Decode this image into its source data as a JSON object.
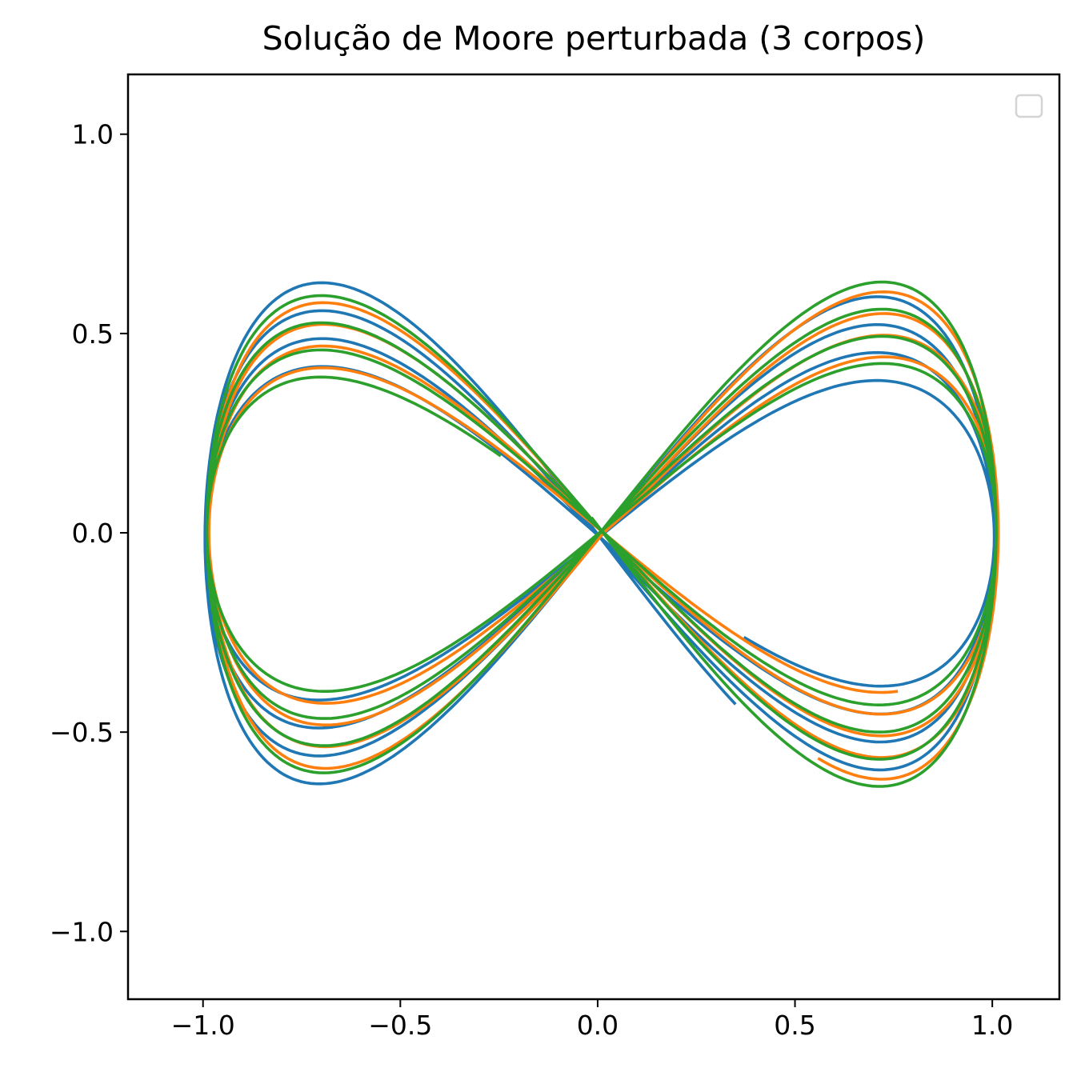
{
  "chart_data": {
    "type": "line",
    "title": "Solução de Moore perturbada (3 corpos)",
    "xlabel": "",
    "ylabel": "",
    "xlim": [
      -1.19,
      1.17
    ],
    "ylim": [
      -1.17,
      1.15
    ],
    "aspect": "equal",
    "grid": false,
    "legend": {
      "placement": "top-right",
      "entries": []
    },
    "x_ticks": [
      {
        "value": -1.0,
        "label": "−1.0"
      },
      {
        "value": -0.5,
        "label": "−0.5"
      },
      {
        "value": 0.0,
        "label": "0.0"
      },
      {
        "value": 0.5,
        "label": "0.5"
      },
      {
        "value": 1.0,
        "label": "1.0"
      }
    ],
    "y_ticks": [
      {
        "value": 1.0,
        "label": "1.0"
      },
      {
        "value": 0.5,
        "label": "0.5"
      },
      {
        "value": 0.0,
        "label": "0.0"
      },
      {
        "value": -0.5,
        "label": "−0.5"
      },
      {
        "value": -1.0,
        "label": "−1.0"
      }
    ],
    "model": "figure-eight orbit x = 1.0 * sin(t), y = A(t) * sin(2t); amplitude A drifts linearly over the trajectory",
    "series": [
      {
        "color": "#1f77b4",
        "t_start": 2.79,
        "t_end": 27.9,
        "A_start": 0.65,
        "A_end": 0.37,
        "x_off": 0.005,
        "y_off": -0.01
      },
      {
        "color": "#ff7f0e",
        "t_start": 27.7,
        "t_end": 2.3,
        "A_start": 0.62,
        "A_end": 0.4,
        "x_off": 0.015,
        "y_off": 0.0
      },
      {
        "color": "#2ca02c",
        "t_start": 28.3,
        "t_end": 3.4,
        "A_start": 0.65,
        "A_end": 0.38,
        "x_off": 0.01,
        "y_off": 0.005
      }
    ]
  }
}
